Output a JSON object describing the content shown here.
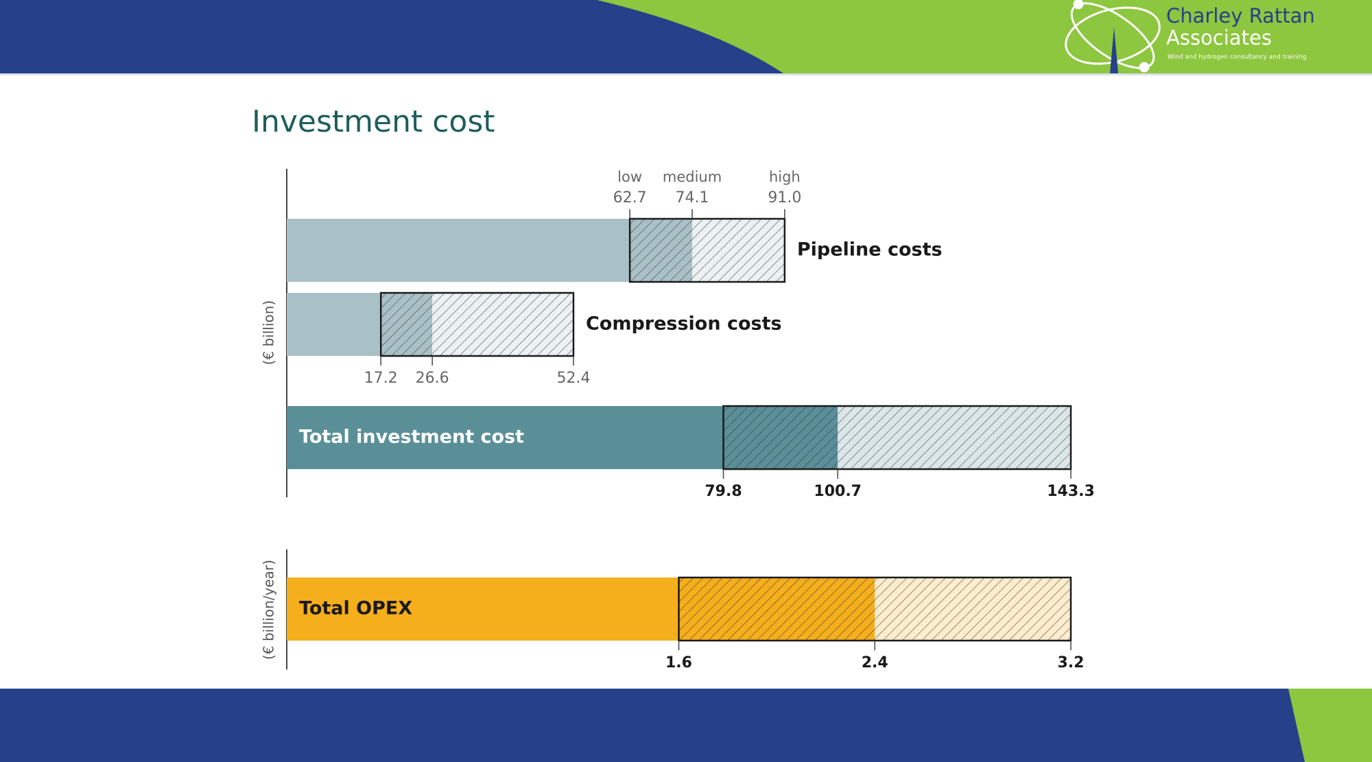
{
  "header": {
    "brand": "Charley Rattan",
    "brand_sub": "Associates",
    "tagline": "Wind and hydrogen consultancy and training"
  },
  "chart_data": [
    {
      "type": "bar",
      "title": "Investment cost",
      "y_label": "(€ billion)",
      "categories": [
        "Pipeline costs",
        "Compression costs",
        "Total investment cost"
      ],
      "colors": [
        "#a9c1c6",
        "#a9c1c6",
        "#5a8f98"
      ],
      "series": [
        {
          "name": "low",
          "values": [
            62.7,
            17.2,
            79.8
          ]
        },
        {
          "name": "medium",
          "values": [
            74.1,
            26.6,
            100.7
          ]
        },
        {
          "name": "high",
          "values": [
            91.0,
            52.4,
            143.3
          ],
          "value_labels": [
            "91.0",
            "52.4",
            "143.3"
          ]
        }
      ],
      "xlim": [
        0,
        143.3
      ]
    },
    {
      "type": "bar",
      "y_label": "(€ billion/year)",
      "categories": [
        "Total OPEX"
      ],
      "colors": [
        "#f5ae1c"
      ],
      "series": [
        {
          "values": [
            1.6
          ]
        },
        {
          "values": [
            2.4
          ]
        },
        {
          "values": [
            3.2
          ]
        }
      ],
      "xlim": [
        0,
        3.2
      ]
    }
  ]
}
